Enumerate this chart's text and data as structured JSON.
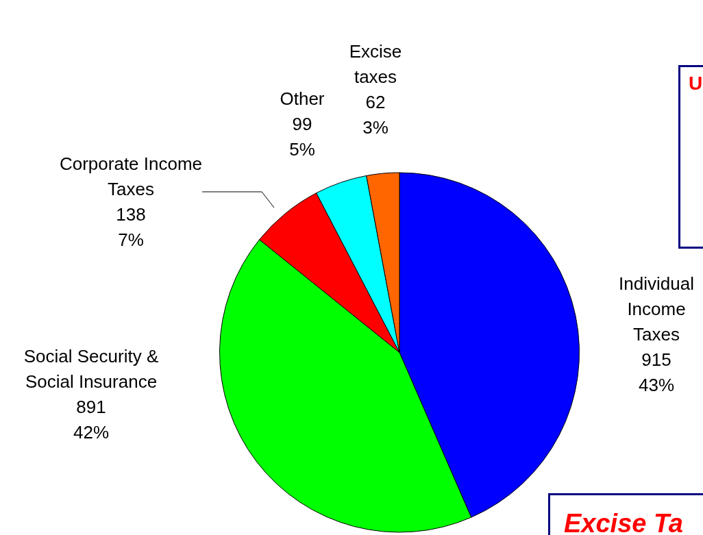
{
  "chart_data": {
    "type": "pie",
    "categories": [
      "Individual Income Taxes",
      "Social Security & Social Insurance",
      "Corporate Income Taxes",
      "Other",
      "Excise taxes"
    ],
    "values": [
      915,
      891,
      138,
      99,
      62
    ],
    "colors": [
      "#0000ff",
      "#00ff00",
      "#ff0000",
      "#00ffff",
      "#ff6600"
    ],
    "value_labels": [
      "915\n43%",
      "891\n42%",
      "138\n7%",
      "99\n5%",
      "62\n3%"
    ],
    "annotations": [
      "U",
      "Excise Ta"
    ],
    "legend": false
  }
}
